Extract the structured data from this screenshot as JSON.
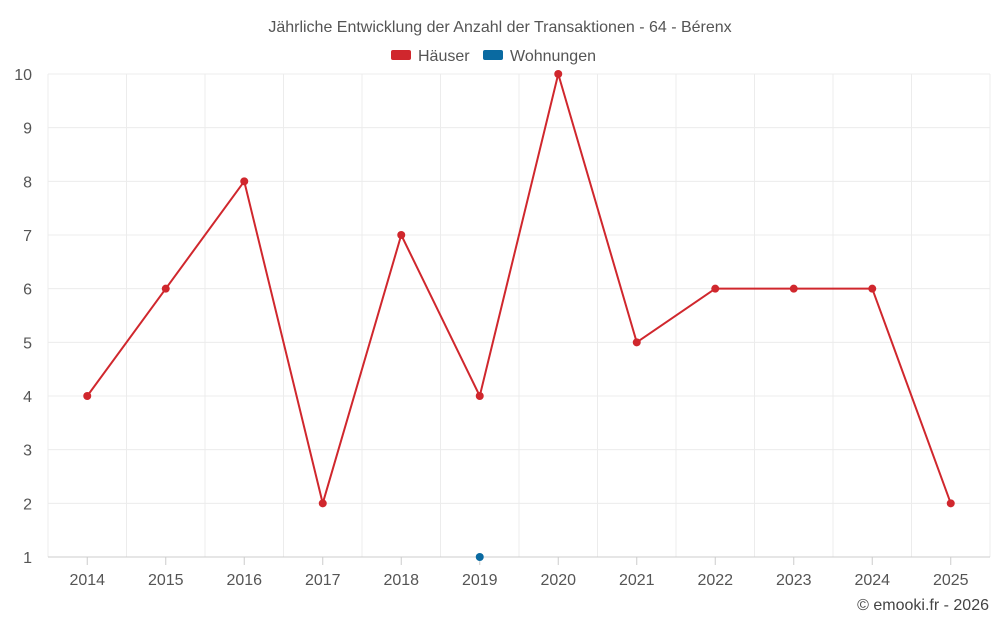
{
  "chart_data": {
    "type": "line",
    "title": "Jährliche Entwicklung der Anzahl der Transaktionen - 64 - Bérenx",
    "categories": [
      "2014",
      "2015",
      "2016",
      "2017",
      "2018",
      "2019",
      "2020",
      "2021",
      "2022",
      "2023",
      "2024",
      "2025"
    ],
    "series": [
      {
        "name": "Häuser",
        "color": "#d0272d",
        "values": [
          4,
          6,
          8,
          2,
          7,
          4,
          10,
          5,
          6,
          6,
          6,
          2
        ]
      },
      {
        "name": "Wohnungen",
        "color": "#0a6aa1",
        "values": [
          null,
          null,
          null,
          null,
          null,
          1,
          null,
          null,
          null,
          null,
          null,
          null
        ]
      }
    ],
    "yticks": [
      "1",
      "2",
      "3",
      "4",
      "5",
      "6",
      "7",
      "8",
      "9",
      "10"
    ],
    "ylim": [
      1,
      10
    ],
    "grid": true,
    "legend_position": "top-center"
  },
  "credit": "© emooki.fr - 2026"
}
